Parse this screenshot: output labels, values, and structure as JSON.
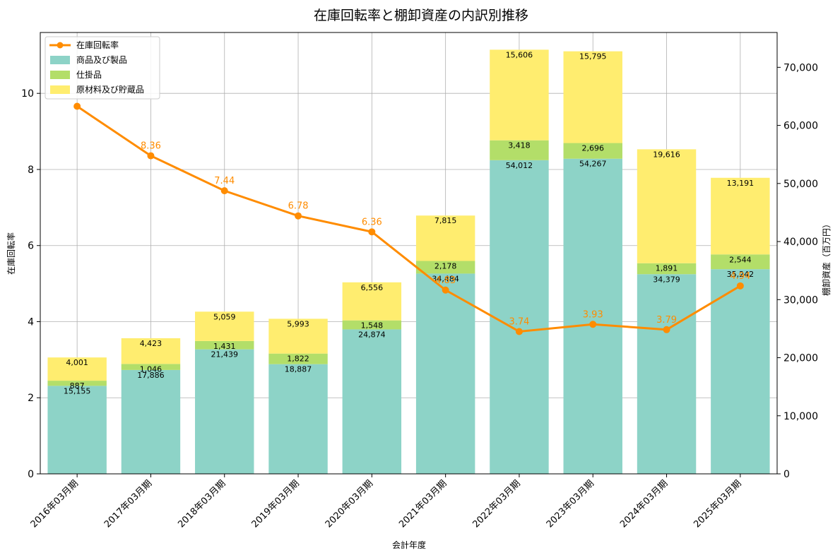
{
  "chart_data": {
    "type": "bar",
    "title": "在庫回転率と棚卸資産の内訳別推移",
    "xlabel": "会計年度",
    "ylabel_left": "在庫回転率",
    "ylabel_right": "棚卸資産（百万円）",
    "categories": [
      "2016年03月期",
      "2017年03月期",
      "2018年03月期",
      "2019年03月期",
      "2020年03月期",
      "2021年03月期",
      "2022年03月期",
      "2023年03月期",
      "2024年03月期",
      "2025年03月期"
    ],
    "stacked_series": [
      {
        "name": "商品及び製品",
        "color": "#8dd3c7",
        "values": [
          15155,
          17886,
          21439,
          18887,
          24874,
          34484,
          54012,
          54267,
          34379,
          35242
        ],
        "labels": [
          "15,155",
          "17,886",
          "21,439",
          "18,887",
          "24,874",
          "34,484",
          "54,012",
          "54,267",
          "34,379",
          "35,242"
        ]
      },
      {
        "name": "仕掛品",
        "color": "#b3de69",
        "values": [
          887,
          1046,
          1431,
          1822,
          1548,
          2178,
          3418,
          2696,
          1891,
          2544
        ],
        "labels": [
          "887",
          "1,046",
          "1,431",
          "1,822",
          "1,548",
          "2,178",
          "3,418",
          "2,696",
          "1,891",
          "2,544"
        ]
      },
      {
        "name": "原材料及び貯蔵品",
        "color": "#ffed6f",
        "values": [
          4001,
          4423,
          5059,
          5993,
          6556,
          7815,
          15606,
          15795,
          19616,
          13191
        ],
        "labels": [
          "4,001",
          "4,423",
          "5,059",
          "5,993",
          "6,556",
          "7,815",
          "15,606",
          "15,795",
          "19,616",
          "13,191"
        ]
      }
    ],
    "line_series": {
      "name": "在庫回転率",
      "color": "#ff8c00",
      "values": [
        9.66,
        8.36,
        7.44,
        6.78,
        6.36,
        4.83,
        3.74,
        3.93,
        3.79,
        4.94
      ],
      "labels": [
        "",
        "8.36",
        "7.44",
        "6.78",
        "6.36",
        "4.83",
        "3.74",
        "3.93",
        "3.79",
        "4.94"
      ]
    },
    "ylim_left": [
      0,
      11.6
    ],
    "yticks_left": [
      "0",
      "2",
      "4",
      "6",
      "8",
      "10"
    ],
    "ylim_right": [
      0,
      76000
    ],
    "yticks_right": [
      "0",
      "10,000",
      "20,000",
      "30,000",
      "40,000",
      "50,000",
      "60,000",
      "70,000"
    ],
    "grid": true,
    "legend_position": "top-left"
  }
}
